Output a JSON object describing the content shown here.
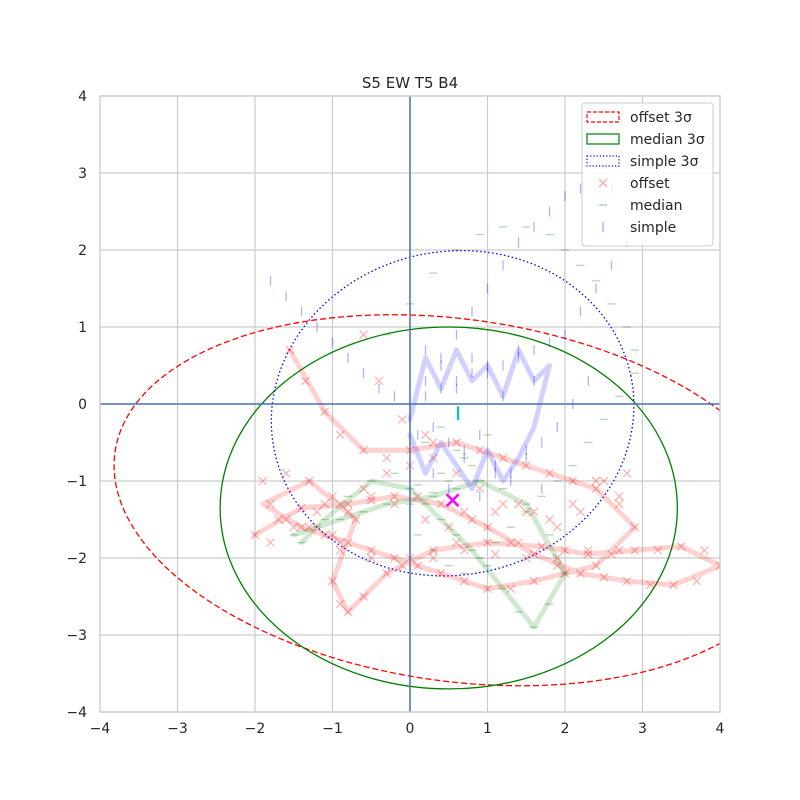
{
  "chart_data": {
    "type": "scatter",
    "title": "S5 EW T5 B4",
    "xlabel": "",
    "ylabel": "",
    "xlim": [
      -4,
      4
    ],
    "ylim": [
      -4,
      4
    ],
    "x_ticks": [
      -4,
      -3,
      -2,
      -1,
      0,
      1,
      2,
      3,
      4
    ],
    "y_ticks": [
      -4,
      -3,
      -2,
      -1,
      0,
      1,
      2,
      3,
      4
    ],
    "x_tick_labels": [
      "−4",
      "−3",
      "−2",
      "−1",
      "0",
      "1",
      "2",
      "3",
      "4"
    ],
    "y_tick_labels": [
      "−4",
      "−3",
      "−2",
      "−1",
      "0",
      "1",
      "2",
      "3",
      "4"
    ],
    "grid": true,
    "legend_position": "top-right",
    "reference_lines": {
      "x": 0,
      "y": 0,
      "color": "#4c72b0"
    },
    "ellipses": [
      {
        "name": "offset 3σ",
        "color": "#ff0000",
        "style": "dashed",
        "center": [
          0.6,
          -1.25
        ],
        "semi_axes": [
          4.45,
          2.35
        ],
        "angle_deg": -8
      },
      {
        "name": "median 3σ",
        "color": "#008000",
        "style": "solid",
        "center": [
          0.5,
          -1.35
        ],
        "semi_axes": [
          2.95,
          2.35
        ],
        "angle_deg": 0
      },
      {
        "name": "simple 3σ",
        "color": "#0000ff",
        "style": "dotted",
        "center": [
          0.55,
          -0.12
        ],
        "semi_axes": [
          2.35,
          2.1
        ],
        "angle_deg": 12
      }
    ],
    "series": [
      {
        "name": "offset",
        "marker": "x",
        "color": "#ff0000",
        "x": [
          -1.55,
          -1.35,
          -1.1,
          -0.9,
          -0.6,
          -0.3,
          0.0,
          0.3,
          0.6,
          0.9,
          1.2,
          1.5,
          1.8,
          2.1,
          2.4,
          2.7,
          2.9,
          2.7,
          2.4,
          2.0,
          1.6,
          1.3,
          1.0,
          0.7,
          0.4,
          0.1,
          -0.2,
          -0.5,
          -0.8,
          -1.1,
          -1.4,
          -1.6,
          -1.8,
          -1.9,
          -1.6,
          -1.3,
          -1.0,
          -0.7,
          -0.9,
          -1.0,
          -0.9,
          -0.8,
          -0.6,
          -0.3,
          0.0,
          0.3,
          0.6,
          1.0,
          1.4,
          1.7,
          2.0,
          2.3,
          2.6,
          2.9,
          3.2,
          3.5,
          3.8,
          4.0,
          3.7,
          3.4,
          3.1,
          2.8,
          2.5,
          2.2,
          1.9,
          1.6,
          1.3,
          1.0,
          0.7,
          0.4,
          0.1,
          -0.2,
          -0.5,
          -0.8,
          -1.1,
          -1.4,
          -1.7,
          -2.0,
          -1.8,
          -1.5,
          -1.2,
          -0.9,
          -0.6,
          -0.3,
          0.0,
          0.3,
          0.6,
          0.9,
          1.2,
          1.5,
          1.8,
          2.1,
          2.4,
          2.7,
          -1.3,
          -1.0,
          -0.8,
          -0.5,
          -0.2,
          0.2,
          0.5,
          0.8,
          1.1,
          1.4,
          1.6,
          1.9,
          2.2,
          2.5,
          2.8,
          2.3,
          1.9,
          1.5,
          1.1,
          0.7,
          0.3,
          -0.1,
          -0.5,
          -0.9,
          -1.2,
          -0.6,
          -0.4,
          -0.1,
          0.2,
          0.55
        ],
        "y": [
          0.7,
          0.3,
          -0.1,
          -0.4,
          -0.6,
          -0.7,
          -0.6,
          -0.5,
          -0.5,
          -0.6,
          -0.7,
          -0.8,
          -0.9,
          -1.0,
          -1.1,
          -1.3,
          -1.6,
          -1.9,
          -2.1,
          -2.2,
          -2.3,
          -2.4,
          -2.4,
          -2.3,
          -2.2,
          -2.1,
          -2.0,
          -1.9,
          -1.8,
          -1.7,
          -1.6,
          -1.5,
          -1.3,
          -1.0,
          -0.9,
          -1.0,
          -1.2,
          -1.5,
          -1.9,
          -2.3,
          -2.6,
          -2.7,
          -2.5,
          -2.2,
          -2.0,
          -1.9,
          -1.8,
          -1.8,
          -1.8,
          -1.85,
          -1.9,
          -1.95,
          -1.95,
          -1.9,
          -1.9,
          -1.85,
          -1.9,
          -2.1,
          -2.3,
          -2.35,
          -2.35,
          -2.3,
          -2.25,
          -2.2,
          -2.1,
          -1.95,
          -1.8,
          -1.6,
          -1.4,
          -1.3,
          -1.2,
          -1.2,
          -1.25,
          -1.3,
          -1.3,
          -1.35,
          -1.5,
          -1.7,
          -1.8,
          -1.6,
          -1.4,
          -1.3,
          -1.1,
          -0.9,
          -0.8,
          -0.7,
          -0.9,
          -1.1,
          -1.3,
          -1.4,
          -1.5,
          -1.3,
          -1.0,
          -1.2,
          -1.6,
          -1.7,
          -1.4,
          -1.2,
          -1.3,
          -1.5,
          -1.6,
          -1.5,
          -1.4,
          -1.3,
          -1.4,
          -1.6,
          -1.4,
          -1.0,
          -0.9,
          -1.9,
          -2.0,
          -2.0,
          -1.95,
          -1.9,
          -2.0,
          -2.1,
          -2.0,
          -1.8,
          -1.6,
          0.9,
          0.3,
          -0.2,
          -0.4,
          -1.25
        ]
      },
      {
        "name": "median",
        "marker": "_",
        "color": "#008000",
        "x": [
          -1.5,
          -1.2,
          -0.9,
          -0.6,
          -0.3,
          0.0,
          0.3,
          0.6,
          0.9,
          1.2,
          1.5,
          1.8,
          2.0,
          1.8,
          1.6,
          1.4,
          1.2,
          1.0,
          0.8,
          0.6,
          0.4,
          0.2,
          0.0,
          -0.2,
          -0.5,
          -0.8,
          -1.1,
          -1.4,
          0.1,
          0.3,
          0.5,
          0.7,
          0.9,
          1.1,
          1.3,
          1.5,
          1.7,
          1.9,
          2.1,
          2.3,
          2.5,
          2.7,
          2.9,
          2.9,
          2.8,
          2.6,
          2.4,
          2.2,
          2.0,
          1.8,
          1.5,
          1.2,
          0.9,
          0.6,
          0.3,
          0.0,
          -0.3,
          0.2,
          0.4,
          0.6,
          0.8,
          1.0,
          0.5,
          0.3,
          0.1,
          0.4,
          0.7
        ],
        "y": [
          -1.7,
          -1.6,
          -1.5,
          -1.4,
          -1.3,
          -1.3,
          -1.2,
          -1.1,
          -1.0,
          -1.1,
          -1.3,
          -1.7,
          -2.2,
          -2.6,
          -2.9,
          -2.7,
          -2.4,
          -2.1,
          -1.9,
          -1.7,
          -1.5,
          -1.3,
          -1.1,
          -0.9,
          -1.0,
          -1.2,
          -1.5,
          -1.8,
          -1.7,
          -1.9,
          -2.1,
          -2.2,
          -2.0,
          -1.8,
          -1.6,
          -1.4,
          -1.2,
          -1.0,
          -0.8,
          -0.5,
          -0.2,
          0.1,
          0.4,
          0.7,
          1.0,
          1.3,
          1.6,
          1.8,
          2.0,
          2.2,
          2.3,
          2.3,
          2.2,
          2.0,
          1.7,
          1.3,
          0.9,
          -0.5,
          -0.3,
          -0.6,
          -0.8,
          -0.4,
          -1.0,
          -1.15,
          -1.05,
          -0.9,
          -0.7
        ]
      },
      {
        "name": "simple",
        "marker": "|",
        "color": "#0000ff",
        "x": [
          -1.8,
          -1.6,
          -1.4,
          -1.2,
          -1.0,
          -0.8,
          -0.6,
          -0.4,
          -0.2,
          0.0,
          0.2,
          0.4,
          0.6,
          0.8,
          1.0,
          1.2,
          1.4,
          1.6,
          1.8,
          2.0,
          2.2,
          2.4,
          2.6,
          2.8,
          2.8,
          2.6,
          2.4,
          2.2,
          2.0,
          1.8,
          1.6,
          1.4,
          1.2,
          1.0,
          0.8,
          0.6,
          0.4,
          0.2,
          0.0,
          0.1,
          0.3,
          0.5,
          0.7,
          0.9,
          1.1,
          1.3,
          1.5,
          1.7,
          1.9,
          2.1,
          2.3,
          0.2,
          0.4,
          0.6,
          0.8,
          1.0,
          1.2,
          1.4,
          1.6,
          0.3,
          0.5,
          0.7,
          0.9,
          1.1,
          1.3,
          1.5,
          1.7
        ],
        "y": [
          1.6,
          1.4,
          1.2,
          1.0,
          0.8,
          0.6,
          0.4,
          0.2,
          0.1,
          0.0,
          0.3,
          0.6,
          0.9,
          1.2,
          1.5,
          1.8,
          2.1,
          2.3,
          2.5,
          2.7,
          2.8,
          2.85,
          2.8,
          2.5,
          2.1,
          1.8,
          1.5,
          1.2,
          0.9,
          0.8,
          0.7,
          0.6,
          0.5,
          0.5,
          0.4,
          0.3,
          0.2,
          0.1,
          -0.2,
          -0.4,
          -0.3,
          -0.5,
          -0.6,
          -0.4,
          -0.8,
          -0.9,
          -0.7,
          -0.5,
          -0.3,
          0.0,
          0.3,
          0.7,
          0.5,
          0.2,
          0.6,
          0.4,
          0.1,
          0.7,
          0.3,
          -0.9,
          -1.1,
          -0.7,
          -1.2,
          -0.9,
          -1.0,
          -0.6,
          -1.1
        ]
      }
    ],
    "traces": [
      {
        "name": "offset-trace",
        "color": "#ff0000",
        "x": [
          -1.55,
          -1.1,
          -0.6,
          0.0,
          0.6,
          1.2,
          1.8,
          2.4,
          2.9,
          2.4,
          1.6,
          1.0,
          0.4,
          -0.2,
          -0.8,
          -1.4,
          -1.9,
          -1.3,
          -0.7,
          -1.0,
          -0.8,
          -0.3,
          0.3,
          1.0,
          1.7,
          2.3,
          2.9,
          3.5,
          4.0,
          3.4,
          2.8,
          2.2,
          1.6,
          1.0,
          0.4,
          -0.2,
          -0.8,
          -1.4,
          -2.0
        ],
        "y": [
          0.7,
          -0.1,
          -0.6,
          -0.6,
          -0.5,
          -0.7,
          -0.9,
          -1.1,
          -1.6,
          -2.1,
          -2.3,
          -2.4,
          -2.2,
          -2.0,
          -1.8,
          -1.6,
          -1.3,
          -1.0,
          -1.5,
          -2.3,
          -2.7,
          -2.2,
          -1.9,
          -1.8,
          -1.85,
          -1.95,
          -1.9,
          -1.85,
          -2.1,
          -2.35,
          -2.3,
          -2.2,
          -1.95,
          -1.6,
          -1.3,
          -1.2,
          -1.3,
          -1.35,
          -1.7
        ]
      },
      {
        "name": "median-trace",
        "color": "#008000",
        "x": [
          -1.5,
          -0.9,
          -0.3,
          0.3,
          0.9,
          1.5,
          2.0,
          1.6,
          1.2,
          0.8,
          0.4,
          0.0,
          -0.5,
          -1.1,
          -1.4
        ],
        "y": [
          -1.7,
          -1.5,
          -1.3,
          -1.2,
          -1.0,
          -1.3,
          -2.2,
          -2.9,
          -2.4,
          -1.9,
          -1.5,
          -1.1,
          -1.0,
          -1.5,
          -1.8
        ]
      },
      {
        "name": "simple-trace",
        "color": "#0000ff",
        "x": [
          0.0,
          0.2,
          0.4,
          0.6,
          0.8,
          1.0,
          1.2,
          1.4,
          1.6,
          1.8,
          1.6,
          1.4,
          1.2,
          1.0,
          0.8,
          0.6,
          0.4,
          0.2,
          0.0
        ],
        "y": [
          -0.2,
          0.6,
          0.2,
          0.7,
          0.3,
          0.5,
          0.1,
          0.7,
          0.3,
          0.5,
          -0.3,
          -0.7,
          -1.0,
          -0.6,
          -1.1,
          -0.8,
          -0.5,
          -0.9,
          -0.4
        ]
      }
    ],
    "highlights": [
      {
        "name": "offset-mean",
        "x": 0.55,
        "y": -1.25,
        "color": "#ff00ff"
      },
      {
        "name": "simple-mean",
        "x": 0.62,
        "y": -0.12,
        "color": "#00c8c8"
      }
    ],
    "legend": [
      {
        "label": "offset 3σ",
        "kind": "patch-dashed",
        "color": "#ff0000"
      },
      {
        "label": "median 3σ",
        "kind": "patch-solid",
        "color": "#008000"
      },
      {
        "label": "simple 3σ",
        "kind": "patch-dotted",
        "color": "#0000ff"
      },
      {
        "label": "offset",
        "kind": "marker-x",
        "color": "#ff0000"
      },
      {
        "label": "median",
        "kind": "marker-hline",
        "color": "#008000"
      },
      {
        "label": "simple",
        "kind": "marker-vline",
        "color": "#0000ff"
      }
    ]
  }
}
